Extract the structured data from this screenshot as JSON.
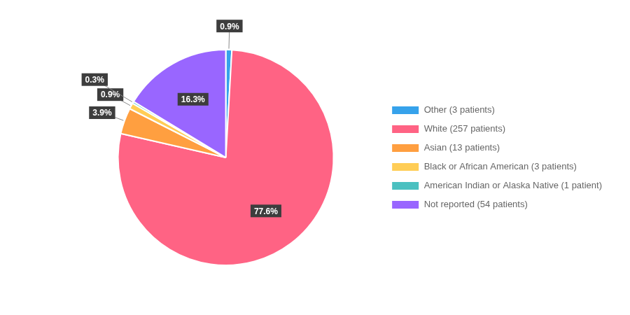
{
  "chart_data": {
    "type": "pie",
    "categories": [
      "Other (3 patients)",
      "White (257 patients)",
      "Asian (13 patients)",
      "Black or African American (3 patients)",
      "American Indian or Alaska Native (1 patient)",
      "Not reported (54 patients)"
    ],
    "values": [
      0.9,
      77.6,
      3.9,
      0.9,
      0.3,
      16.3
    ],
    "value_labels": [
      "0.9%",
      "77.6%",
      "3.9%",
      "0.9%",
      "0.3%",
      "16.3%"
    ],
    "data_labels": true,
    "legend": "right"
  }
}
